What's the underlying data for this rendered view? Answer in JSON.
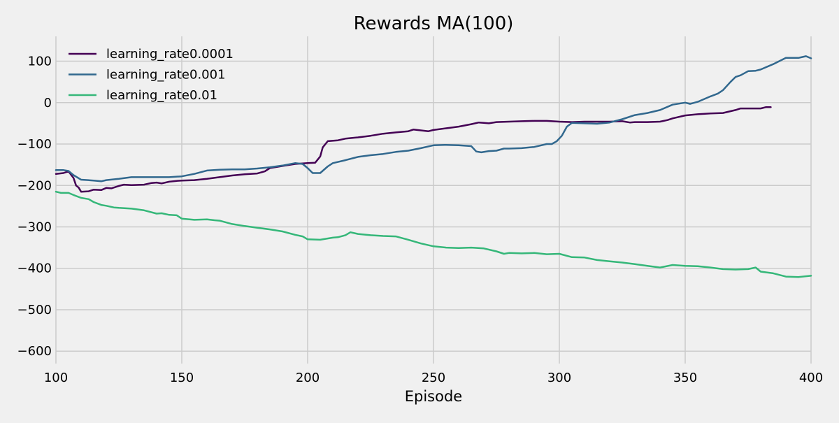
{
  "chart_data": {
    "type": "line",
    "title": "Rewards MA(100)",
    "xlabel": "Episode",
    "ylabel": "",
    "xlim": [
      100,
      400
    ],
    "ylim": [
      -630,
      160
    ],
    "xticks": [
      100,
      150,
      200,
      250,
      300,
      350,
      400
    ],
    "yticks": [
      100,
      0,
      -100,
      -200,
      -300,
      -400,
      -500,
      -600
    ],
    "xtick_labels": [
      "100",
      "150",
      "200",
      "250",
      "300",
      "350",
      "400"
    ],
    "ytick_labels": [
      "100",
      "0",
      "−100",
      "−200",
      "−300",
      "−400",
      "−500",
      "−600"
    ],
    "grid": true,
    "legend_position": "top-left",
    "background_color": "#f0f0f0",
    "grid_color": "#cbcbcb",
    "series": [
      {
        "name": "learning_rate0.0001",
        "color": "#440154",
        "points": [
          [
            100,
            -172
          ],
          [
            103,
            -170
          ],
          [
            105,
            -166
          ],
          [
            107,
            -182
          ],
          [
            108,
            -200
          ],
          [
            109,
            -205
          ],
          [
            110,
            -215
          ],
          [
            113,
            -214
          ],
          [
            115,
            -210
          ],
          [
            118,
            -211
          ],
          [
            120,
            -206
          ],
          [
            122,
            -207
          ],
          [
            125,
            -201
          ],
          [
            127,
            -198
          ],
          [
            130,
            -199
          ],
          [
            135,
            -198
          ],
          [
            138,
            -194
          ],
          [
            140,
            -193
          ],
          [
            142,
            -195
          ],
          [
            145,
            -191
          ],
          [
            148,
            -189
          ],
          [
            150,
            -188
          ],
          [
            155,
            -187
          ],
          [
            160,
            -184
          ],
          [
            165,
            -180
          ],
          [
            170,
            -176
          ],
          [
            175,
            -173
          ],
          [
            180,
            -171
          ],
          [
            183,
            -166
          ],
          [
            185,
            -158
          ],
          [
            190,
            -153
          ],
          [
            195,
            -148
          ],
          [
            200,
            -146
          ],
          [
            203,
            -145
          ],
          [
            205,
            -130
          ],
          [
            206,
            -108
          ],
          [
            208,
            -93
          ],
          [
            212,
            -91
          ],
          [
            215,
            -87
          ],
          [
            220,
            -84
          ],
          [
            225,
            -80
          ],
          [
            230,
            -75
          ],
          [
            235,
            -72
          ],
          [
            240,
            -69
          ],
          [
            242,
            -65
          ],
          [
            245,
            -67
          ],
          [
            248,
            -69
          ],
          [
            250,
            -66
          ],
          [
            255,
            -62
          ],
          [
            260,
            -58
          ],
          [
            265,
            -52
          ],
          [
            268,
            -48
          ],
          [
            270,
            -49
          ],
          [
            272,
            -50
          ],
          [
            275,
            -47
          ],
          [
            280,
            -46
          ],
          [
            285,
            -45
          ],
          [
            290,
            -44
          ],
          [
            295,
            -44
          ],
          [
            300,
            -46
          ],
          [
            305,
            -47
          ],
          [
            310,
            -46
          ],
          [
            315,
            -46
          ],
          [
            320,
            -46
          ],
          [
            325,
            -45
          ],
          [
            328,
            -48
          ],
          [
            330,
            -47
          ],
          [
            335,
            -47
          ],
          [
            340,
            -46
          ],
          [
            343,
            -42
          ],
          [
            345,
            -38
          ],
          [
            350,
            -31
          ],
          [
            355,
            -28
          ],
          [
            360,
            -26
          ],
          [
            365,
            -25
          ],
          [
            370,
            -18
          ],
          [
            372,
            -14
          ],
          [
            375,
            -14
          ],
          [
            380,
            -14
          ],
          [
            382,
            -11
          ],
          [
            384,
            -11
          ]
        ]
      },
      {
        "name": "learning_rate0.001",
        "color": "#31688e",
        "points": [
          [
            100,
            -163
          ],
          [
            103,
            -163
          ],
          [
            105,
            -165
          ],
          [
            107,
            -175
          ],
          [
            110,
            -186
          ],
          [
            115,
            -188
          ],
          [
            118,
            -190
          ],
          [
            120,
            -187
          ],
          [
            125,
            -184
          ],
          [
            130,
            -180
          ],
          [
            135,
            -180
          ],
          [
            140,
            -180
          ],
          [
            145,
            -180
          ],
          [
            150,
            -178
          ],
          [
            155,
            -172
          ],
          [
            160,
            -164
          ],
          [
            165,
            -162
          ],
          [
            170,
            -161
          ],
          [
            175,
            -161
          ],
          [
            180,
            -159
          ],
          [
            185,
            -156
          ],
          [
            190,
            -152
          ],
          [
            195,
            -146
          ],
          [
            198,
            -148
          ],
          [
            200,
            -158
          ],
          [
            202,
            -170
          ],
          [
            205,
            -170
          ],
          [
            208,
            -154
          ],
          [
            210,
            -146
          ],
          [
            215,
            -139
          ],
          [
            220,
            -131
          ],
          [
            225,
            -127
          ],
          [
            230,
            -124
          ],
          [
            235,
            -119
          ],
          [
            240,
            -116
          ],
          [
            245,
            -110
          ],
          [
            250,
            -103
          ],
          [
            255,
            -102
          ],
          [
            260,
            -103
          ],
          [
            265,
            -105
          ],
          [
            267,
            -118
          ],
          [
            269,
            -120
          ],
          [
            272,
            -117
          ],
          [
            275,
            -116
          ],
          [
            278,
            -111
          ],
          [
            280,
            -111
          ],
          [
            285,
            -110
          ],
          [
            290,
            -107
          ],
          [
            295,
            -100
          ],
          [
            297,
            -100
          ],
          [
            299,
            -93
          ],
          [
            301,
            -80
          ],
          [
            303,
            -58
          ],
          [
            305,
            -49
          ],
          [
            310,
            -50
          ],
          [
            315,
            -51
          ],
          [
            320,
            -48
          ],
          [
            325,
            -40
          ],
          [
            330,
            -30
          ],
          [
            335,
            -25
          ],
          [
            340,
            -18
          ],
          [
            345,
            -5
          ],
          [
            350,
            0
          ],
          [
            352,
            -3
          ],
          [
            355,
            2
          ],
          [
            360,
            15
          ],
          [
            363,
            22
          ],
          [
            365,
            30
          ],
          [
            368,
            50
          ],
          [
            370,
            62
          ],
          [
            372,
            66
          ],
          [
            375,
            76
          ],
          [
            378,
            77
          ],
          [
            380,
            80
          ],
          [
            385,
            93
          ],
          [
            390,
            108
          ],
          [
            395,
            108
          ],
          [
            398,
            112
          ],
          [
            400,
            107
          ]
        ]
      },
      {
        "name": "learning_rate0.01",
        "color": "#35b779",
        "points": [
          [
            100,
            -215
          ],
          [
            102,
            -218
          ],
          [
            105,
            -218
          ],
          [
            107,
            -223
          ],
          [
            110,
            -230
          ],
          [
            113,
            -233
          ],
          [
            115,
            -240
          ],
          [
            118,
            -247
          ],
          [
            120,
            -249
          ],
          [
            123,
            -253
          ],
          [
            125,
            -254
          ],
          [
            130,
            -256
          ],
          [
            135,
            -260
          ],
          [
            140,
            -268
          ],
          [
            142,
            -267
          ],
          [
            145,
            -271
          ],
          [
            148,
            -272
          ],
          [
            150,
            -280
          ],
          [
            155,
            -283
          ],
          [
            160,
            -282
          ],
          [
            163,
            -284
          ],
          [
            165,
            -285
          ],
          [
            170,
            -293
          ],
          [
            175,
            -298
          ],
          [
            180,
            -302
          ],
          [
            185,
            -306
          ],
          [
            190,
            -311
          ],
          [
            195,
            -319
          ],
          [
            198,
            -323
          ],
          [
            200,
            -330
          ],
          [
            205,
            -331
          ],
          [
            210,
            -326
          ],
          [
            212,
            -325
          ],
          [
            215,
            -320
          ],
          [
            217,
            -313
          ],
          [
            220,
            -317
          ],
          [
            225,
            -320
          ],
          [
            230,
            -322
          ],
          [
            235,
            -323
          ],
          [
            240,
            -331
          ],
          [
            245,
            -340
          ],
          [
            250,
            -347
          ],
          [
            255,
            -350
          ],
          [
            260,
            -351
          ],
          [
            265,
            -350
          ],
          [
            270,
            -352
          ],
          [
            275,
            -359
          ],
          [
            278,
            -365
          ],
          [
            280,
            -363
          ],
          [
            285,
            -364
          ],
          [
            290,
            -363
          ],
          [
            295,
            -366
          ],
          [
            300,
            -365
          ],
          [
            305,
            -373
          ],
          [
            310,
            -374
          ],
          [
            315,
            -380
          ],
          [
            320,
            -383
          ],
          [
            325,
            -386
          ],
          [
            330,
            -390
          ],
          [
            335,
            -394
          ],
          [
            340,
            -398
          ],
          [
            345,
            -392
          ],
          [
            350,
            -394
          ],
          [
            355,
            -395
          ],
          [
            360,
            -398
          ],
          [
            365,
            -402
          ],
          [
            370,
            -403
          ],
          [
            375,
            -402
          ],
          [
            378,
            -398
          ],
          [
            380,
            -408
          ],
          [
            385,
            -412
          ],
          [
            390,
            -420
          ],
          [
            395,
            -421
          ],
          [
            400,
            -418
          ]
        ]
      }
    ]
  }
}
